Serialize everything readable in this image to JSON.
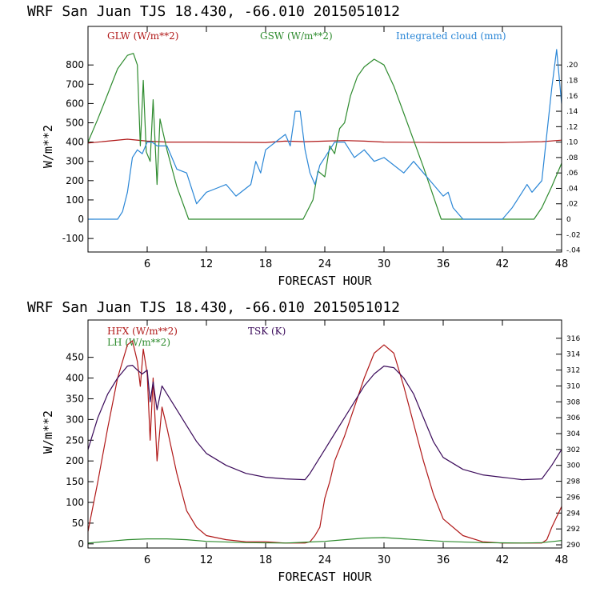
{
  "chart_data": [
    {
      "type": "line",
      "title": "WRF  San Juan TJS  18.430, -66.010  2015051012",
      "xlabel": "FORECAST HOUR",
      "ylabel": "W/m**2",
      "xlim": [
        0,
        48
      ],
      "x_ticks": [
        6,
        12,
        18,
        24,
        30,
        36,
        42,
        48
      ],
      "ylim": [
        -170,
        1000
      ],
      "y_ticks": [
        -100,
        0,
        100,
        200,
        300,
        400,
        500,
        600,
        700,
        800
      ],
      "y2lim": [
        -0.0425,
        0.25
      ],
      "y2_ticks": [
        ".20",
        ".18",
        ".16",
        ".14",
        ".12",
        ".10",
        ".08",
        ".06",
        ".04",
        ".02",
        "0",
        "-.02",
        "-.04"
      ],
      "y2_tick_values": [
        0.2,
        0.18,
        0.16,
        0.14,
        0.12,
        0.1,
        0.08,
        0.06,
        0.04,
        0.02,
        0,
        -0.02,
        -0.04
      ],
      "series": [
        {
          "name": "GLW (W/m**2)",
          "color": "#b01818",
          "axis": "left",
          "x": [
            0,
            2,
            4,
            6,
            8,
            12,
            18,
            20,
            22,
            24,
            26,
            28,
            30,
            36,
            42,
            46,
            48
          ],
          "y": [
            395,
            405,
            415,
            405,
            400,
            400,
            398,
            405,
            402,
            405,
            408,
            405,
            400,
            398,
            398,
            402,
            410
          ]
        },
        {
          "name": "GSW (W/m**2)",
          "color": "#2e8b2e",
          "axis": "left",
          "x": [
            0,
            1,
            2,
            3,
            4,
            4.6,
            5,
            5.3,
            5.6,
            5.9,
            6.3,
            6.6,
            7.0,
            7.3,
            8,
            9,
            10.2,
            12,
            18,
            21.8,
            22.8,
            23.3,
            24,
            24.5,
            25,
            25.5,
            26,
            26.6,
            27.3,
            28,
            29,
            30,
            31,
            32,
            34,
            35.8,
            42,
            45.2,
            46,
            47,
            48
          ],
          "y": [
            400,
            520,
            650,
            780,
            850,
            860,
            800,
            380,
            720,
            350,
            300,
            620,
            180,
            520,
            360,
            170,
            0,
            0,
            0,
            0,
            100,
            250,
            220,
            380,
            340,
            470,
            500,
            640,
            740,
            790,
            830,
            800,
            690,
            550,
            270,
            0,
            0,
            0,
            60,
            170,
            290
          ]
        },
        {
          "name": "Integrated cloud (mm)",
          "color": "#2a86d6",
          "axis": "right",
          "x": [
            0,
            1,
            2,
            3,
            3.5,
            4,
            4.5,
            5,
            5.5,
            6,
            6.5,
            7,
            8,
            9,
            10,
            11,
            12,
            13,
            14,
            15,
            16,
            16.5,
            17,
            17.5,
            18,
            19,
            20,
            20.5,
            21,
            21.5,
            22,
            22.5,
            23,
            23.5,
            24,
            25,
            26,
            27,
            28,
            29,
            30,
            31,
            32,
            33,
            34,
            35,
            36,
            36.5,
            37,
            38,
            40,
            42,
            43,
            44,
            44.5,
            45,
            46,
            47,
            47.5,
            48
          ],
          "y": [
            0,
            0,
            0,
            0,
            0.01,
            0.035,
            0.08,
            0.09,
            0.085,
            0.1,
            0.1,
            0.095,
            0.095,
            0.065,
            0.06,
            0.02,
            0.035,
            0.04,
            0.045,
            0.03,
            0.04,
            0.045,
            0.075,
            0.06,
            0.09,
            0.1,
            0.11,
            0.095,
            0.14,
            0.14,
            0.09,
            0.06,
            0.045,
            0.07,
            0.08,
            0.1,
            0.1,
            0.08,
            0.09,
            0.075,
            0.08,
            0.07,
            0.06,
            0.075,
            0.06,
            0.045,
            0.03,
            0.035,
            0.015,
            0,
            0,
            0,
            0.015,
            0.035,
            0.045,
            0.035,
            0.05,
            0.17,
            0.22,
            0.15
          ]
        }
      ]
    },
    {
      "type": "line",
      "title": "WRF  San Juan TJS  18.430, -66.010  2015051012",
      "xlabel": "FORECAST HOUR",
      "ylabel": "W/m**2",
      "xlim": [
        0,
        48
      ],
      "x_ticks": [
        6,
        12,
        18,
        24,
        30,
        36,
        42,
        48
      ],
      "ylim": [
        -10,
        540
      ],
      "y_ticks": [
        0,
        50,
        100,
        150,
        200,
        250,
        300,
        350,
        400,
        450
      ],
      "y2lim": [
        289.6,
        318.3
      ],
      "y2_ticks": [
        "316",
        "314",
        "312",
        "310",
        "308",
        "306",
        "304",
        "302",
        "300",
        "298",
        "296",
        "294",
        "292",
        "290"
      ],
      "y2_tick_values": [
        316,
        314,
        312,
        310,
        308,
        306,
        304,
        302,
        300,
        298,
        296,
        294,
        292,
        290
      ],
      "series": [
        {
          "name": "HFX (W/m**2)",
          "color": "#b01818",
          "axis": "left",
          "x": [
            0,
            1,
            2,
            3,
            4,
            4.5,
            5,
            5.3,
            5.6,
            6,
            6.3,
            6.6,
            7,
            7.5,
            8,
            9,
            10,
            11,
            12,
            14,
            16,
            18,
            20,
            22,
            22.5,
            23,
            23.5,
            24,
            24.5,
            25,
            26,
            27,
            28,
            29,
            30,
            31,
            32,
            33,
            34,
            35,
            36,
            38,
            40,
            42,
            46,
            46.5,
            47,
            48
          ],
          "y": [
            30,
            150,
            280,
            400,
            480,
            490,
            440,
            380,
            470,
            410,
            250,
            400,
            200,
            330,
            280,
            170,
            80,
            40,
            20,
            10,
            5,
            5,
            2,
            2,
            5,
            20,
            40,
            110,
            150,
            200,
            260,
            330,
            400,
            460,
            480,
            460,
            380,
            290,
            200,
            120,
            60,
            20,
            5,
            2,
            2,
            10,
            40,
            90
          ]
        },
        {
          "name": "LH  (W/m**2)",
          "color": "#2e8b2e",
          "axis": "left",
          "x": [
            0,
            2,
            4,
            6,
            8,
            10,
            12,
            16,
            20,
            24,
            26,
            28,
            30,
            32,
            36,
            40,
            44,
            46,
            48
          ],
          "y": [
            2,
            6,
            10,
            12,
            12,
            10,
            6,
            3,
            2,
            6,
            10,
            14,
            15,
            12,
            6,
            3,
            2,
            3,
            8
          ]
        },
        {
          "name": "TSK (K)",
          "color": "#3a0a5a",
          "axis": "right",
          "x": [
            0,
            1,
            2,
            3,
            4,
            4.5,
            5,
            5.5,
            6,
            6.3,
            6.6,
            7,
            7.5,
            8,
            9,
            10,
            11,
            12,
            14,
            16,
            18,
            20,
            22,
            22.5,
            23,
            24,
            25,
            26,
            27,
            28,
            29,
            30,
            31,
            32,
            33,
            34,
            35,
            36,
            38,
            40,
            42,
            44,
            46,
            47,
            48
          ],
          "y": [
            302,
            306,
            309,
            311,
            312.5,
            312.6,
            312,
            311.5,
            312,
            308,
            310.5,
            307,
            310,
            309,
            307,
            305,
            303,
            301.5,
            300,
            299,
            298.5,
            298.3,
            298.2,
            299,
            300,
            302,
            304,
            306,
            308,
            310,
            311.5,
            312.5,
            312.3,
            311,
            309,
            306,
            303,
            301,
            299.5,
            298.8,
            298.5,
            298.2,
            298.3,
            300,
            302
          ]
        }
      ]
    }
  ]
}
